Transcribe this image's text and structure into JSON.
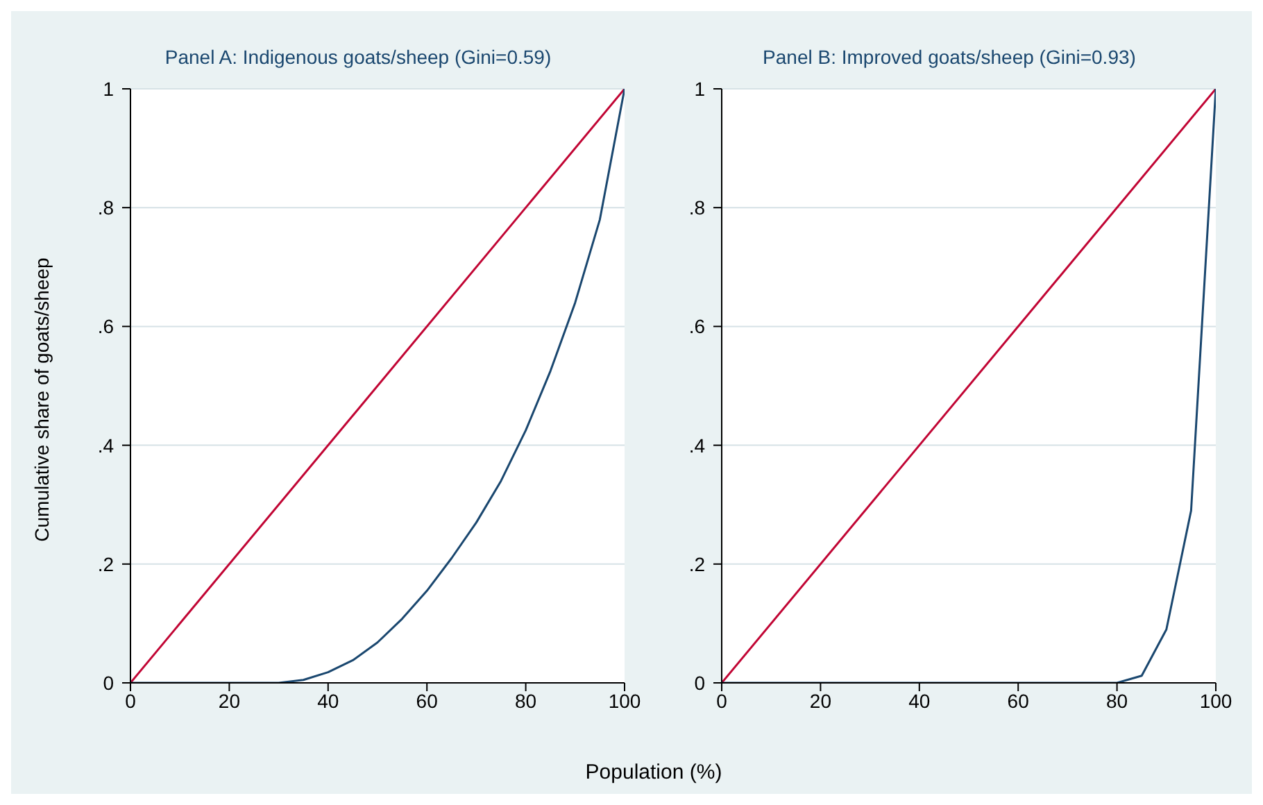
{
  "chart_data": [
    {
      "type": "line",
      "title": "Panel A: Indigenous goats/sheep (Gini=0.59)",
      "ylabel": "Cumulative share of goats/sheep",
      "xlabel": "Population (%)",
      "grid": "y",
      "marker": "none",
      "line_style": "solid",
      "xlim": [
        0,
        100
      ],
      "xticks": [
        0,
        20,
        40,
        60,
        80,
        100
      ],
      "ylim": [
        0,
        1
      ],
      "yticks": [
        {
          "value": 0,
          "label": "0"
        },
        {
          "value": 0.2,
          "label": ".2"
        },
        {
          "value": 0.4,
          "label": ".4"
        },
        {
          "value": 0.6,
          "label": ".6"
        },
        {
          "value": 0.8,
          "label": ".8"
        },
        {
          "value": 1,
          "label": "1"
        }
      ],
      "series": [
        {
          "color": "#c10534",
          "x": [
            0,
            100
          ],
          "values": [
            0,
            1
          ]
        },
        {
          "color": "#1a476f",
          "x": [
            0,
            5,
            10,
            15,
            20,
            25,
            30,
            35,
            40,
            45,
            50,
            55,
            60,
            65,
            70,
            75,
            80,
            85,
            90,
            95,
            100
          ],
          "values": [
            0,
            0,
            0,
            0,
            0,
            0,
            0,
            0.005,
            0.018,
            0.038,
            0.068,
            0.108,
            0.155,
            0.21,
            0.27,
            0.34,
            0.425,
            0.525,
            0.64,
            0.78,
            1
          ]
        }
      ]
    },
    {
      "type": "line",
      "title": "Panel B: Improved goats/sheep (Gini=0.93)",
      "grid": "y",
      "marker": "none",
      "line_style": "solid",
      "xlim": [
        0,
        100
      ],
      "xticks": [
        0,
        20,
        40,
        60,
        80,
        100
      ],
      "ylim": [
        0,
        1
      ],
      "yticks": [
        {
          "value": 0,
          "label": "0"
        },
        {
          "value": 0.2,
          "label": ".2"
        },
        {
          "value": 0.4,
          "label": ".4"
        },
        {
          "value": 0.6,
          "label": ".6"
        },
        {
          "value": 0.8,
          "label": ".8"
        },
        {
          "value": 1,
          "label": "1"
        }
      ],
      "series": [
        {
          "color": "#c10534",
          "x": [
            0,
            100
          ],
          "values": [
            0,
            1
          ]
        },
        {
          "color": "#1a476f",
          "x": [
            0,
            80,
            85,
            90,
            95,
            100
          ],
          "values": [
            0,
            0,
            0.012,
            0.09,
            0.29,
            1
          ]
        }
      ]
    }
  ]
}
